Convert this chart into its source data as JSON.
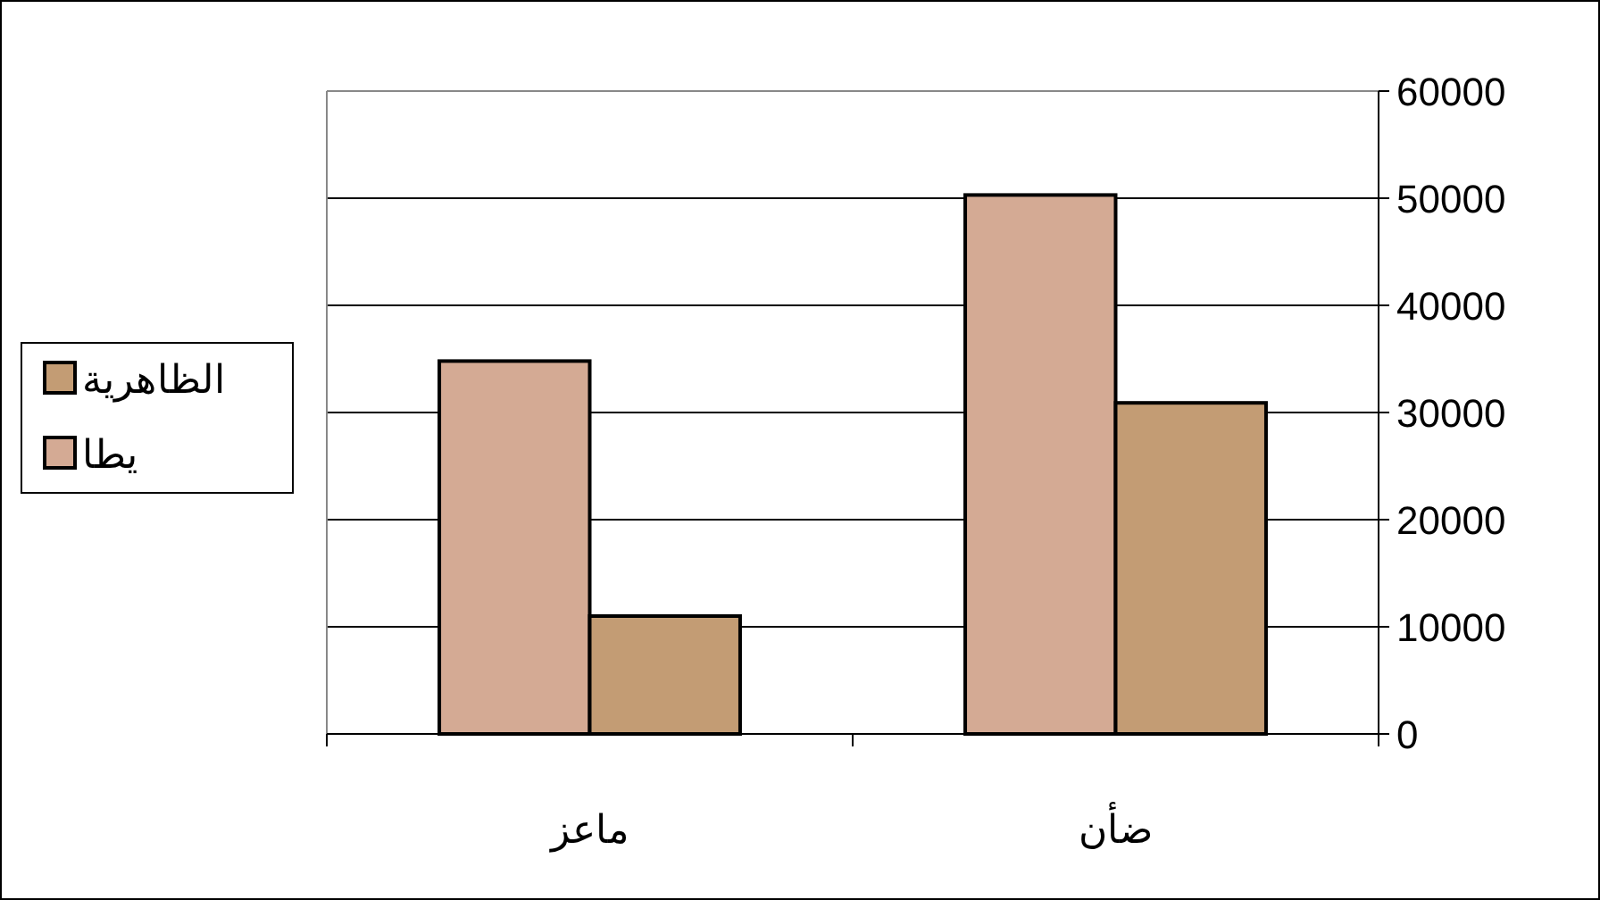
{
  "chart_data": {
    "type": "bar",
    "categories": [
      "ماعز",
      "ضأن"
    ],
    "series": [
      {
        "name": "يطا",
        "color": "#d4aa94",
        "values": [
          34800,
          50300
        ]
      },
      {
        "name": "الظاهرية",
        "color": "#c39c74",
        "values": [
          11000,
          30900
        ]
      }
    ],
    "ylim": [
      0,
      60000
    ],
    "yticks": [
      0,
      10000,
      20000,
      30000,
      40000,
      50000,
      60000
    ],
    "grid": "y",
    "legend": "left"
  }
}
